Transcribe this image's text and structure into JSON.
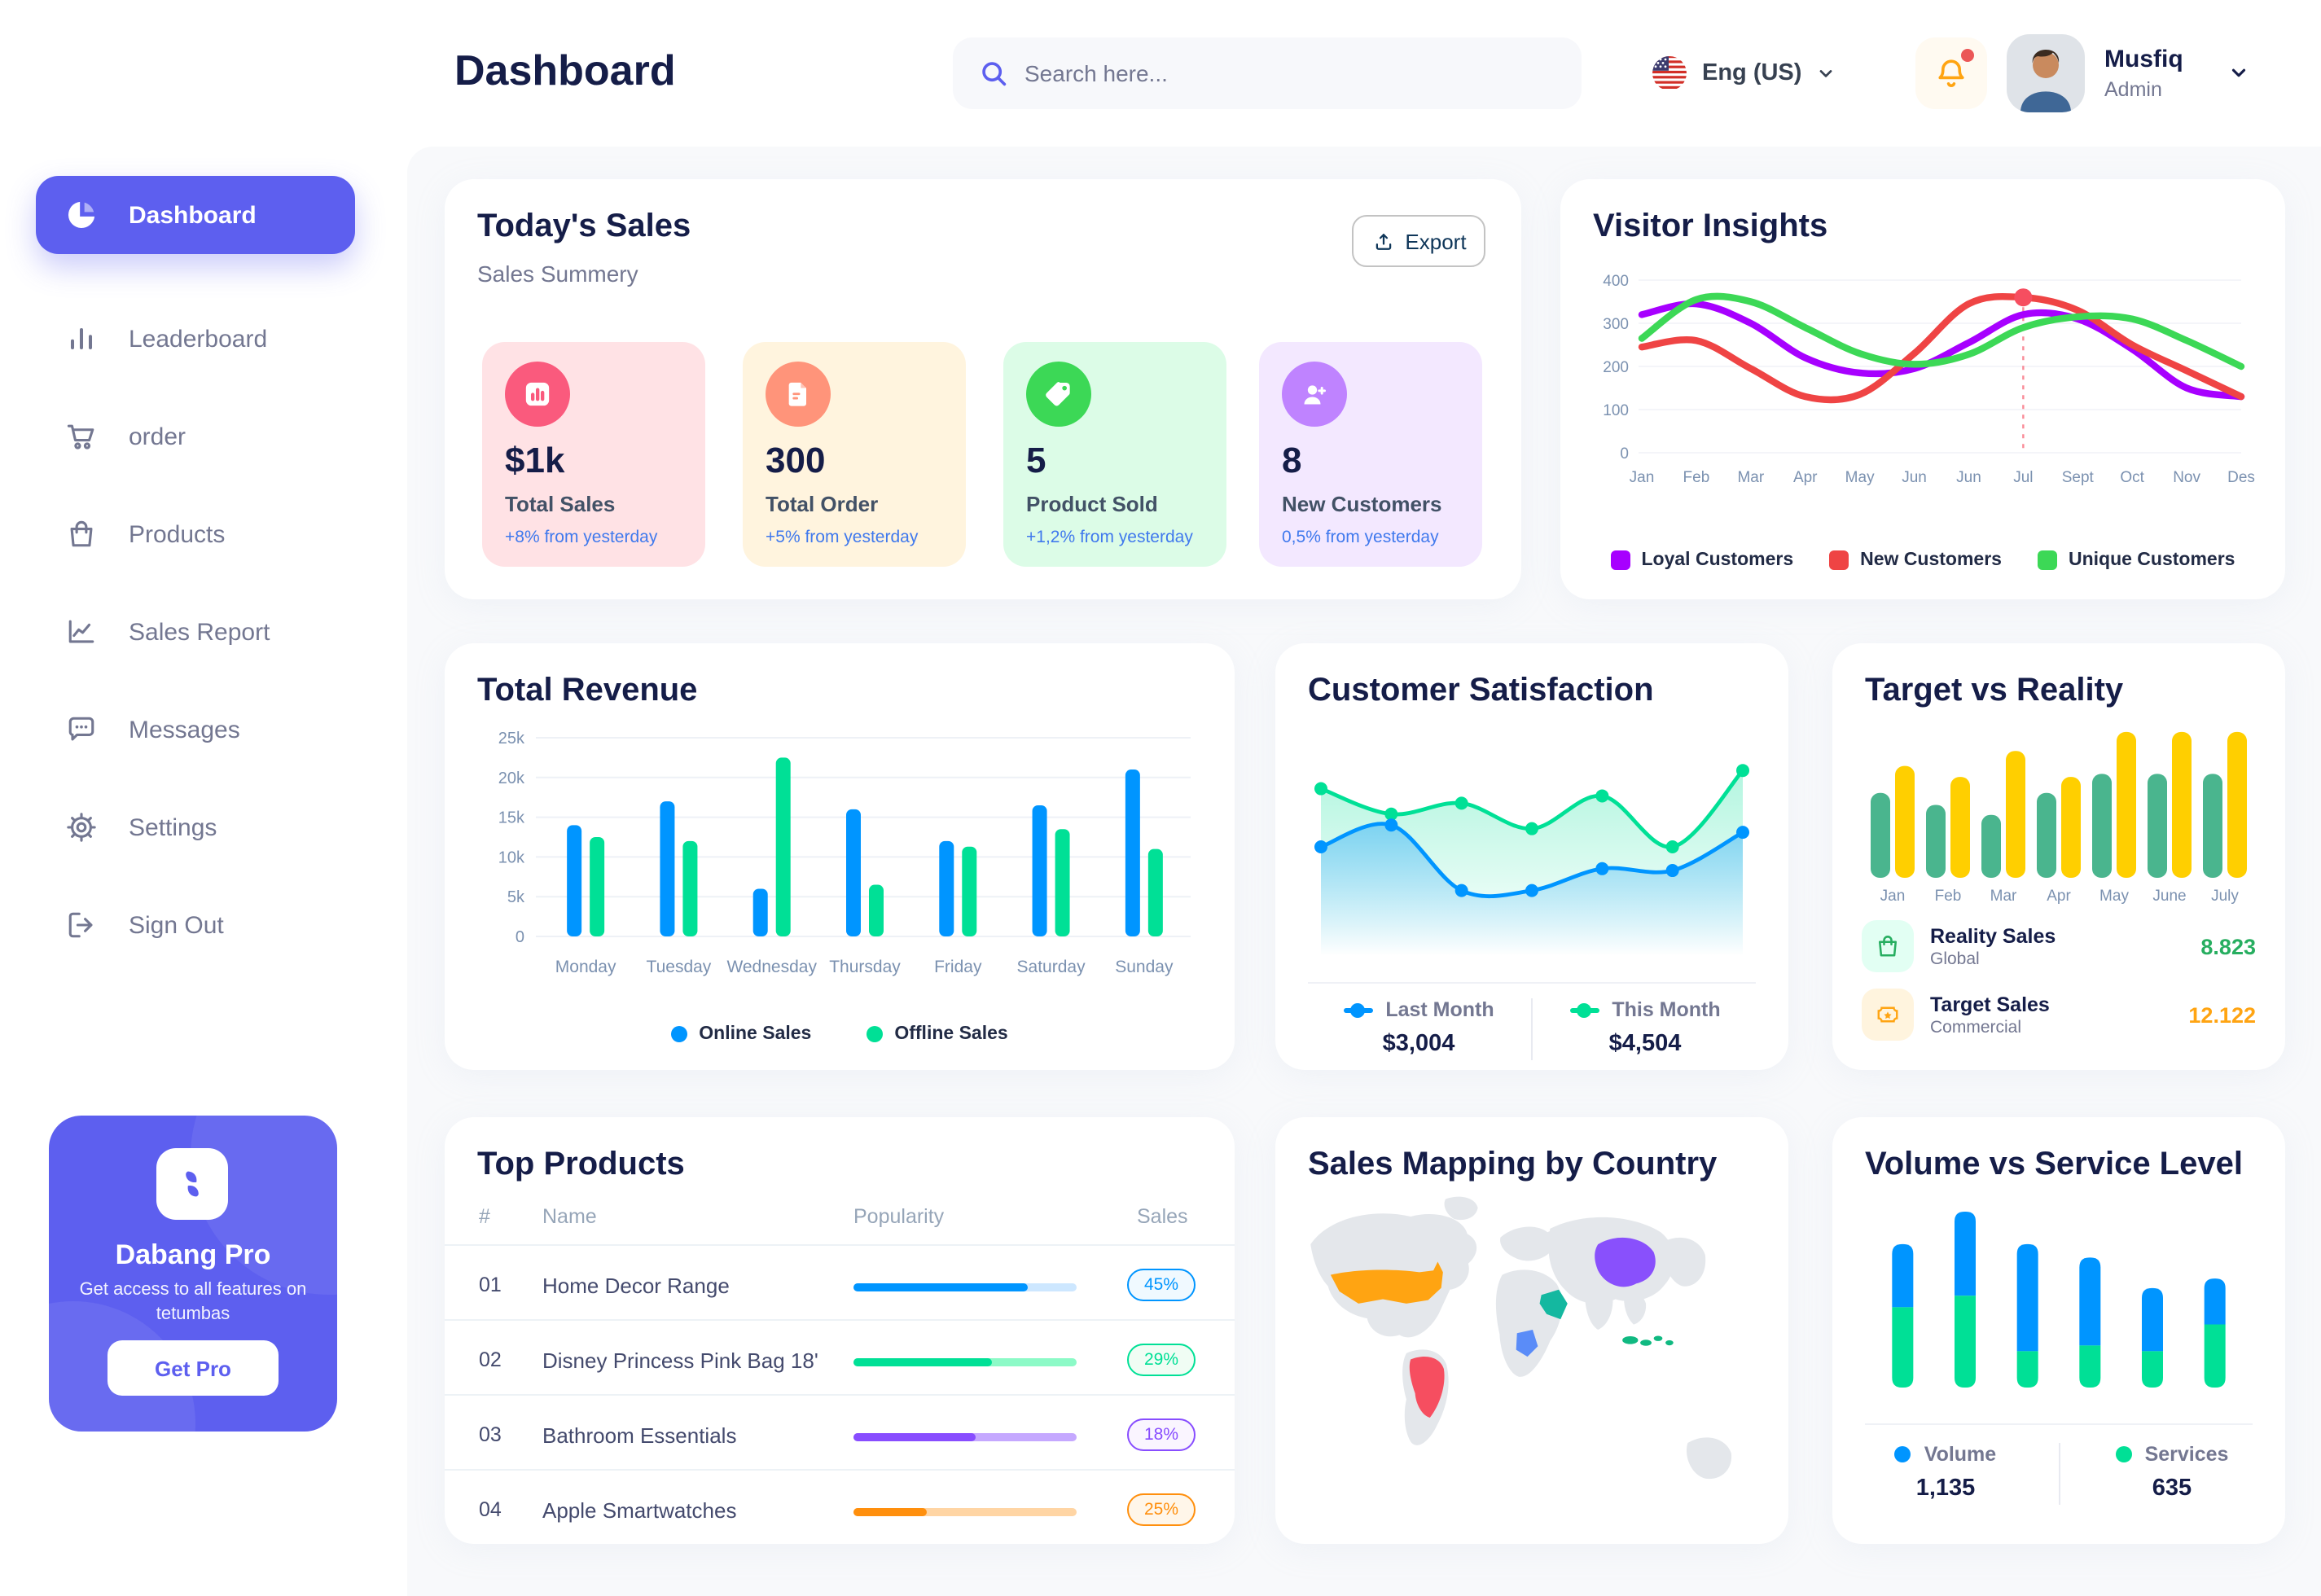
{
  "brand": {
    "name": "Dabang"
  },
  "header": {
    "page_title": "Dashboard",
    "search_placeholder": "Search here...",
    "language": "Eng (US)",
    "user": {
      "name": "Musfiq",
      "role": "Admin"
    }
  },
  "sidebar": {
    "items": [
      {
        "label": "Dashboard"
      },
      {
        "label": "Leaderboard"
      },
      {
        "label": "order"
      },
      {
        "label": "Products"
      },
      {
        "label": "Sales Report"
      },
      {
        "label": "Messages"
      },
      {
        "label": "Settings"
      },
      {
        "label": "Sign Out"
      }
    ],
    "pro_card": {
      "title": "Dabang Pro",
      "description": "Get access to all features on tetumbas",
      "cta": "Get Pro"
    }
  },
  "today_sales": {
    "title": "Today's Sales",
    "subtitle": "Sales Summery",
    "export_label": "Export",
    "cards": [
      {
        "value": "$1k",
        "label": "Total Sales",
        "delta": "+8% from yesterday",
        "bg": "#FFE2E5",
        "accent": "#FA5A7D",
        "icon": "bar-chart-icon"
      },
      {
        "value": "300",
        "label": "Total Order",
        "delta": "+5% from yesterday",
        "bg": "#FFF4DE",
        "accent": "#FF947A",
        "icon": "order-note-icon"
      },
      {
        "value": "5",
        "label": "Product Sold",
        "delta": "+1,2% from yesterday",
        "bg": "#DCFCE7",
        "accent": "#3CD856",
        "icon": "tag-icon"
      },
      {
        "value": "8",
        "label": "New Customers",
        "delta": "0,5% from yesterday",
        "bg": "#F3E8FF",
        "accent": "#BF83FF",
        "icon": "user-plus-icon"
      }
    ]
  },
  "chart_data": [
    {
      "id": "visitor_insights",
      "type": "line",
      "title": "Visitor Insights",
      "x": [
        "Jan",
        "Feb",
        "Mar",
        "Apr",
        "May",
        "Jun",
        "Jun",
        "Jul",
        "Sept",
        "Oct",
        "Nov",
        "Des"
      ],
      "ylim": [
        0,
        400
      ],
      "yticks": [
        0,
        100,
        200,
        300,
        400
      ],
      "grid": true,
      "legend_position": "bottom",
      "series": [
        {
          "name": "Loyal Customers",
          "color": "#A700FF",
          "values": [
            320,
            345,
            300,
            220,
            185,
            195,
            255,
            320,
            310,
            240,
            150,
            130
          ]
        },
        {
          "name": "New Customers",
          "color": "#EF4444",
          "values": [
            245,
            260,
            195,
            130,
            135,
            230,
            345,
            360,
            330,
            250,
            190,
            130
          ]
        },
        {
          "name": "Unique Customers",
          "color": "#3CD856",
          "values": [
            265,
            355,
            350,
            290,
            230,
            205,
            228,
            290,
            315,
            310,
            260,
            200
          ]
        }
      ],
      "annotation": {
        "series": "New Customers",
        "index": 7,
        "label": "Jul",
        "marker_color": "#F64E60"
      }
    },
    {
      "id": "total_revenue",
      "type": "bar",
      "title": "Total Revenue",
      "categories": [
        "Monday",
        "Tuesday",
        "Wednesday",
        "Thursday",
        "Friday",
        "Saturday",
        "Sunday"
      ],
      "ylim": [
        0,
        25000
      ],
      "ytick_labels": [
        "0",
        "5k",
        "10k",
        "15k",
        "20k",
        "25k"
      ],
      "grid": true,
      "legend_position": "bottom",
      "series": [
        {
          "name": "Online Sales",
          "color": "#0095FF",
          "values": [
            14000,
            17000,
            6000,
            16000,
            12000,
            16500,
            21000
          ]
        },
        {
          "name": "Offline Sales",
          "color": "#00E096",
          "values": [
            12500,
            12000,
            22500,
            6500,
            11300,
            13500,
            11000
          ]
        }
      ]
    },
    {
      "id": "customer_satisfaction",
      "type": "area",
      "title": "Customer Satisfaction",
      "ylim": [
        0,
        6
      ],
      "grid": false,
      "legend_position": "bottom",
      "series": [
        {
          "name": "Last Month",
          "total": "$3,004",
          "color": "#0095FF",
          "values": [
            3.0,
            3.6,
            1.8,
            1.8,
            2.4,
            2.35,
            3.4
          ]
        },
        {
          "name": "This Month",
          "total": "$4,504",
          "color": "#00E096",
          "values": [
            4.6,
            3.9,
            4.2,
            3.5,
            4.4,
            3.0,
            5.1
          ]
        }
      ]
    },
    {
      "id": "target_vs_reality",
      "type": "bar",
      "title": "Target vs Reality",
      "categories": [
        "Jan",
        "Feb",
        "Mar",
        "Apr",
        "May",
        "June",
        "July"
      ],
      "ylim": [
        0,
        15
      ],
      "grid": false,
      "legend_position": "bottom-list",
      "series": [
        {
          "name": "Reality Sales",
          "subtitle": "Global",
          "total": "8.823",
          "color": "#4AB58E",
          "accent": "#27AE60",
          "tile_bg": "#E2FFF3",
          "values": [
            8.5,
            7.3,
            6.3,
            8.5,
            10.4,
            10.4,
            10.4
          ]
        },
        {
          "name": "Target Sales",
          "subtitle": "Commercial",
          "total": "12.122",
          "color": "#FFCF00",
          "accent": "#FFA412",
          "tile_bg": "#FFF4DE",
          "values": [
            11.2,
            10.1,
            12.7,
            10.1,
            14.6,
            14.6,
            14.6
          ]
        }
      ]
    },
    {
      "id": "volume_vs_service",
      "type": "stacked-bar",
      "title": "Volume vs Service Level",
      "legend_position": "bottom",
      "series": [
        {
          "name": "Volume",
          "total": "1,135",
          "color": "#0095FF",
          "values": [
            330,
            440,
            560,
            460,
            330,
            240
          ]
        },
        {
          "name": "Services",
          "total": "635",
          "color": "#00E096",
          "values": [
            420,
            480,
            190,
            220,
            190,
            330
          ]
        }
      ]
    }
  ],
  "top_products": {
    "title": "Top Products",
    "columns": [
      "#",
      "Name",
      "Popularity",
      "Sales"
    ],
    "rows": [
      {
        "num": "01",
        "name": "Home Decor Range",
        "popularity": 78,
        "sales": "45%",
        "color": "#0095FF",
        "track": "#CDE7FF",
        "badge_bg": "#F0F9FF"
      },
      {
        "num": "02",
        "name": "Disney Princess Pink Bag 18'",
        "popularity": 62,
        "sales": "29%",
        "color": "#00E096",
        "track": "#8CFAC7",
        "badge_bg": "#F0FDF4"
      },
      {
        "num": "03",
        "name": "Bathroom Essentials",
        "popularity": 55,
        "sales": "18%",
        "color": "#884DFF",
        "track": "#C5A8FF",
        "badge_bg": "#FAF5FF"
      },
      {
        "num": "04",
        "name": "Apple Smartwatches",
        "popularity": 33,
        "sales": "25%",
        "color": "#FF8F0D",
        "track": "#FFD5A4",
        "badge_bg": "#FFF6E9"
      }
    ]
  },
  "sales_map": {
    "title": "Sales Mapping by Country",
    "countries": [
      {
        "name": "United States",
        "color": "#FFA412"
      },
      {
        "name": "Brazil",
        "color": "#F64E60"
      },
      {
        "name": "Saudi Arabia",
        "color": "#14B8A0"
      },
      {
        "name": "DR Congo",
        "color": "#5A8CF8"
      },
      {
        "name": "China",
        "color": "#8950FC"
      },
      {
        "name": "Indonesia",
        "color": "#10B981"
      }
    ]
  }
}
